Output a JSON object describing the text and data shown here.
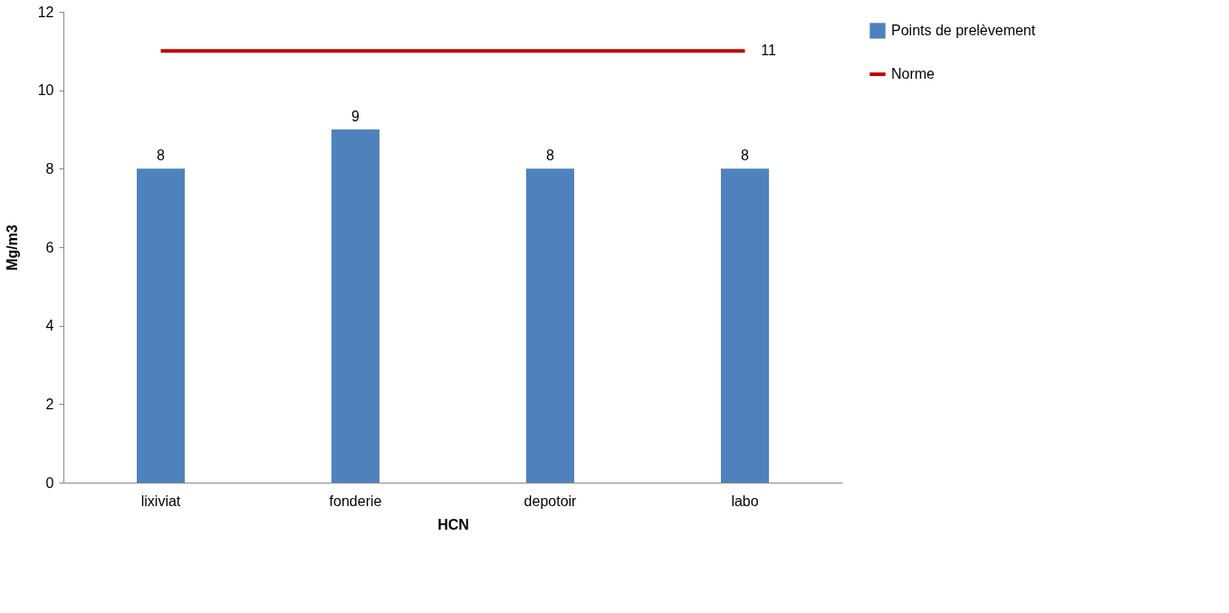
{
  "chart_data": {
    "type": "bar",
    "xlabel": "HCN",
    "ylabel": "Mg/m3",
    "categories": [
      "lixiviat",
      "fonderie",
      "depotoir",
      "labo"
    ],
    "series": [
      {
        "name": "Points de prelèvement",
        "color": "#4f81bd",
        "values": [
          8,
          9,
          8,
          8
        ],
        "value_labels": [
          "8",
          "9",
          "8",
          "8"
        ]
      },
      {
        "name": "Norme",
        "type": "line",
        "color": "#c00000",
        "values": [
          11,
          11,
          11,
          11
        ],
        "value_labels": [
          null,
          null,
          null,
          "11"
        ],
        "marker": "none"
      }
    ],
    "ylim": [
      0,
      12
    ],
    "yticks": [
      0,
      2,
      4,
      6,
      8,
      10,
      12
    ],
    "grid": false,
    "legend": "right"
  }
}
